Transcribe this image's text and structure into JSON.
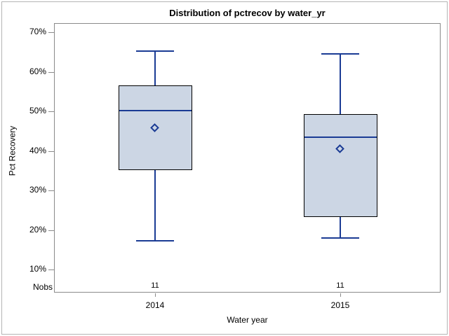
{
  "chart_data": {
    "type": "boxplot",
    "title": "Distribution of pctrecov by water_yr",
    "xlabel": "Water year",
    "ylabel": "Pct Recovery",
    "nobs_label": "Nobs",
    "categories": [
      "2014",
      "2015"
    ],
    "y_ticks": [
      {
        "label": "70%",
        "value": 70
      },
      {
        "label": "60%",
        "value": 60
      },
      {
        "label": "50%",
        "value": 50
      },
      {
        "label": "40%",
        "value": 40
      },
      {
        "label": "30%",
        "value": 30
      },
      {
        "label": "20%",
        "value": 20
      },
      {
        "label": "10%",
        "value": 10
      }
    ],
    "ylim": [
      10,
      70
    ],
    "grid": "off",
    "legend": "none",
    "series": [
      {
        "category": "2014",
        "nobs": "11",
        "whisker_low": 17.2,
        "q1": 35.1,
        "median": 50.1,
        "mean": 45.8,
        "q3": 56.5,
        "whisker_high": 65.3
      },
      {
        "category": "2015",
        "nobs": "11",
        "whisker_low": 17.9,
        "q1": 23.3,
        "median": 43.4,
        "mean": 40.5,
        "q3": 49.3,
        "whisker_high": 64.6
      }
    ],
    "colors": {
      "box_fill": "#ccd6e4",
      "box_border": "#000000",
      "line": "#1a3b94",
      "frame": "#8a8a8a",
      "text": "#000000",
      "figure_border": "#b5b5b5"
    }
  }
}
